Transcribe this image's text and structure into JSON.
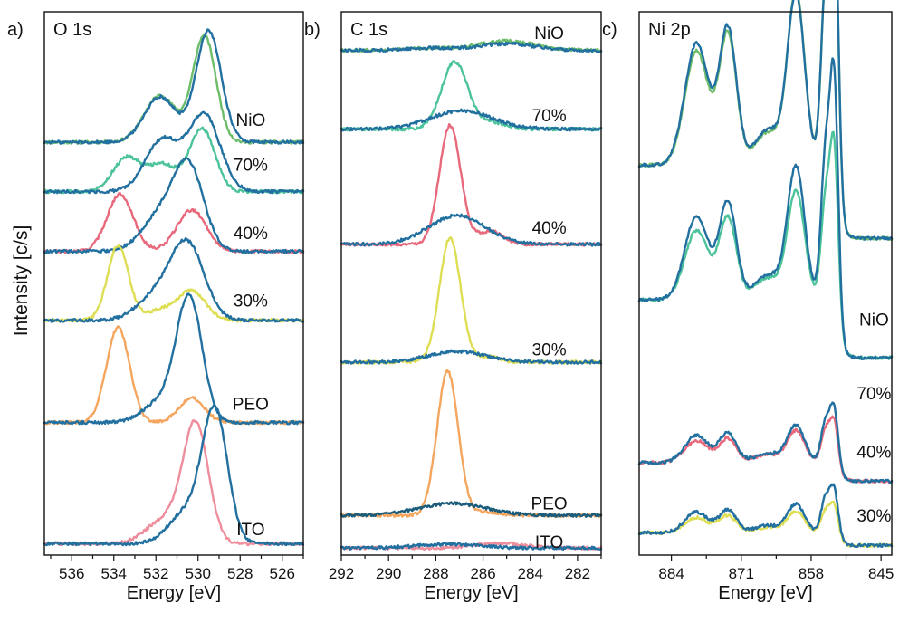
{
  "figure": {
    "ylabel": "Intensity [c/s]"
  },
  "colors": {
    "blue": "#2270a0",
    "NiO": "#6dbd6b",
    "70%": "#4cc39a",
    "40%": "#e8697b",
    "30%": "#dede55",
    "PEO": "#f4a65e",
    "ITO": "#ee8d9b"
  },
  "chart_data": [
    {
      "type": "line",
      "panel_label": "a)",
      "title": "O 1s",
      "xlabel": "Energy [eV]",
      "xlim": [
        537.3,
        525.0
      ],
      "x_reversed": true,
      "ticks": [
        536,
        534,
        532,
        530,
        528,
        526
      ],
      "ylim": [
        0,
        100
      ],
      "y_units": "arbitrary intensity (stacked)",
      "labels": [
        {
          "text": "NiO",
          "x": 527.5,
          "y": 80.2
        },
        {
          "text": "70%",
          "x": 527.5,
          "y": 71.9
        },
        {
          "text": "40%",
          "x": 527.5,
          "y": 59.3
        },
        {
          "text": "30%",
          "x": 527.5,
          "y": 46.9
        },
        {
          "text": "PEO",
          "x": 527.5,
          "y": 27.9
        },
        {
          "text": "ITO",
          "x": 527.5,
          "y": 4.8
        }
      ],
      "series": [
        {
          "color": "#6dbd6b",
          "baseline": 76.0,
          "peaks": [
            [
              529.7,
              19.5,
              0.55
            ],
            [
              531.8,
              8.6,
              0.75
            ]
          ]
        },
        {
          "color": "#2270a0",
          "baseline": 76.0,
          "peaks": [
            [
              529.5,
              20.5,
              0.6
            ],
            [
              531.8,
              8.4,
              0.75
            ]
          ]
        },
        {
          "color": "#4cc39a",
          "baseline": 66.9,
          "peaks": [
            [
              529.8,
              11.5,
              0.6
            ],
            [
              531.7,
              5.0,
              0.7
            ],
            [
              533.4,
              6.2,
              0.65
            ]
          ]
        },
        {
          "color": "#2270a0",
          "baseline": 66.9,
          "peaks": [
            [
              529.7,
              14.0,
              0.75
            ],
            [
              531.7,
              9.5,
              0.8
            ]
          ]
        },
        {
          "color": "#e8697b",
          "baseline": 55.9,
          "peaks": [
            [
              530.3,
              7.6,
              0.7
            ],
            [
              533.7,
              10.5,
              0.62
            ]
          ]
        },
        {
          "color": "#2270a0",
          "baseline": 55.9,
          "peaks": [
            [
              530.4,
              14.2,
              0.7
            ],
            [
              531.7,
              7.0,
              0.9
            ]
          ]
        },
        {
          "color": "#dede55",
          "baseline": 43.2,
          "peaks": [
            [
              530.3,
              5.3,
              0.65
            ],
            [
              531.8,
              1.8,
              0.7
            ],
            [
              533.8,
              13.7,
              0.5
            ]
          ]
        },
        {
          "color": "#2270a0",
          "baseline": 43.2,
          "peaks": [
            [
              530.5,
              13.7,
              0.8
            ],
            [
              532.0,
              4.3,
              0.9
            ]
          ]
        },
        {
          "color": "#f4a65e",
          "baseline": 24.4,
          "peaks": [
            [
              530.3,
              4.5,
              0.6
            ],
            [
              533.8,
              17.5,
              0.55
            ]
          ]
        },
        {
          "color": "#2270a0",
          "baseline": 24.4,
          "peaks": [
            [
              530.4,
              21.9,
              0.6
            ],
            [
              531.6,
              4.2,
              0.9
            ]
          ]
        },
        {
          "color": "#ee8d9b",
          "baseline": 2.1,
          "peaks": [
            [
              530.1,
              21.3,
              0.6
            ],
            [
              531.5,
              4.6,
              0.9
            ]
          ]
        },
        {
          "color": "#2270a0",
          "baseline": 2.1,
          "peaks": [
            [
              529.2,
              24.2,
              0.6
            ],
            [
              530.6,
              5.6,
              0.8
            ]
          ]
        }
      ]
    },
    {
      "type": "line",
      "panel_label": "b)",
      "title": "C 1s",
      "xlabel": "Energy [eV]",
      "xlim": [
        292.0,
        281.0
      ],
      "x_reversed": true,
      "ticks": [
        292,
        290,
        288,
        286,
        284,
        282
      ],
      "ylim": [
        0,
        100
      ],
      "y_units": "arbitrary intensity (stacked)",
      "labels": [
        {
          "text": "NiO",
          "x": 283.2,
          "y": 96.2
        },
        {
          "text": "70%",
          "x": 283.2,
          "y": 81.0
        },
        {
          "text": "40%",
          "x": 283.2,
          "y": 60.3
        },
        {
          "text": "30%",
          "x": 283.2,
          "y": 37.9
        },
        {
          "text": "PEO",
          "x": 283.2,
          "y": 9.6
        },
        {
          "text": "ITO",
          "x": 283.2,
          "y": 2.5
        }
      ],
      "series": [
        {
          "color": "#6dbd6b",
          "baseline": 92.9,
          "peaks": [
            [
              288.3,
              0.4,
              1.0
            ],
            [
              285.0,
              1.7,
              1.2
            ]
          ]
        },
        {
          "color": "#2270a0",
          "baseline": 92.9,
          "peaks": [
            [
              288.3,
              0.4,
              1.0
            ],
            [
              285.0,
              1.2,
              1.2
            ]
          ]
        },
        {
          "color": "#4cc39a",
          "baseline": 78.4,
          "peaks": [
            [
              287.2,
              12.4,
              0.55
            ],
            [
              285.6,
              1.2,
              0.6
            ]
          ]
        },
        {
          "color": "#2270a0",
          "baseline": 78.4,
          "peaks": [
            [
              286.9,
              3.4,
              1.3
            ]
          ]
        },
        {
          "color": "#e8697b",
          "baseline": 57.2,
          "peaks": [
            [
              287.4,
              21.9,
              0.45
            ],
            [
              285.7,
              2.4,
              0.55
            ]
          ]
        },
        {
          "color": "#2270a0",
          "baseline": 57.2,
          "peaks": [
            [
              287.1,
              5.3,
              1.2
            ]
          ]
        },
        {
          "color": "#dede55",
          "baseline": 35.5,
          "peaks": [
            [
              287.4,
              22.8,
              0.45
            ],
            [
              285.8,
              1.0,
              0.5
            ]
          ]
        },
        {
          "color": "#2270a0",
          "baseline": 35.5,
          "peaks": [
            [
              287.1,
              2.0,
              1.2
            ]
          ]
        },
        {
          "color": "#f4a65e",
          "baseline": 7.3,
          "peaks": [
            [
              287.5,
              26.5,
              0.45
            ],
            [
              285.8,
              0.6,
              0.5
            ]
          ]
        },
        {
          "color": "#1a5c7a",
          "baseline": 7.3,
          "peaks": [
            [
              287.3,
              2.2,
              1.4
            ]
          ]
        },
        {
          "color": "#ee8d9b",
          "baseline": 1.3,
          "peaks": [
            [
              285.3,
              0.9,
              1.0
            ]
          ]
        },
        {
          "color": "#2270a0",
          "baseline": 1.3,
          "peaks": [
            [
              287.5,
              0.7,
              1.3
            ]
          ]
        }
      ]
    },
    {
      "type": "line",
      "panel_label": "c)",
      "title": "Ni 2p",
      "xlabel": "Energy [eV]",
      "xlim": [
        890.0,
        843.0
      ],
      "x_reversed": true,
      "ticks": [
        884,
        871,
        858,
        845
      ],
      "ylim": [
        0,
        100
      ],
      "y_units": "arbitrary intensity (stacked)",
      "labels": [
        {
          "text": "NiO",
          "x": 846.3,
          "y": 43.4
        },
        {
          "text": "70%",
          "x": 846.3,
          "y": 29.8
        },
        {
          "text": "40%",
          "x": 846.3,
          "y": 19.1
        },
        {
          "text": "30%",
          "x": 846.3,
          "y": 7.3
        }
      ],
      "series": [
        {
          "color": "#6dbd6b",
          "baseline": 58.3,
          "edge": 852.8,
          "step": 13.5,
          "peaks": [
            [
              879.3,
              21.0,
              2.2
            ],
            [
              873.5,
              24.0,
              1.6
            ],
            [
              860.8,
              31.5,
              1.6
            ],
            [
              855.3,
              32.5,
              0.85
            ],
            [
              853.7,
              49.0,
              0.75
            ],
            [
              866.0,
              6.0,
              2.5
            ]
          ]
        },
        {
          "color": "#2270a0",
          "baseline": 58.3,
          "edge": 852.8,
          "step": 13.5,
          "peaks": [
            [
              879.3,
              22.5,
              2.2
            ],
            [
              873.5,
              25.0,
              1.6
            ],
            [
              860.8,
              31.0,
              1.6
            ],
            [
              855.3,
              32.5,
              0.85
            ],
            [
              853.7,
              51.0,
              0.75
            ],
            [
              866.0,
              6.5,
              2.5
            ]
          ]
        },
        {
          "color": "#4cc39a",
          "baseline": 36.3,
          "edge": 852.8,
          "step": 10.7,
          "peaks": [
            [
              879.3,
              12.8,
              2.2
            ],
            [
              873.5,
              15.0,
              1.6
            ],
            [
              860.8,
              19.7,
              1.6
            ],
            [
              855.3,
              18.3,
              0.85
            ],
            [
              853.7,
              28.5,
              0.75
            ],
            [
              866.0,
              4.0,
              2.5
            ]
          ]
        },
        {
          "color": "#2270a0",
          "baseline": 36.3,
          "edge": 852.8,
          "step": 10.7,
          "peaks": [
            [
              879.3,
              15.4,
              2.2
            ],
            [
              873.5,
              17.7,
              1.6
            ],
            [
              860.8,
              24.2,
              1.6
            ],
            [
              855.3,
              26.5,
              0.85
            ],
            [
              853.7,
              40.6,
              0.75
            ],
            [
              866.0,
              4.6,
              2.5
            ]
          ]
        },
        {
          "color": "#e8697b",
          "baseline": 13.6,
          "edge": 852.8,
          "step": 3.4,
          "peaks": [
            [
              879.3,
              4.1,
              2.2
            ],
            [
              873.5,
              4.4,
              1.6
            ],
            [
              860.8,
              5.8,
              1.6
            ],
            [
              855.3,
              5.9,
              0.85
            ],
            [
              853.7,
              7.7,
              0.75
            ],
            [
              866.0,
              1.5,
              2.5
            ]
          ]
        },
        {
          "color": "#2270a0",
          "baseline": 13.6,
          "edge": 852.8,
          "step": 3.4,
          "peaks": [
            [
              879.3,
              5.0,
              2.2
            ],
            [
              873.5,
              5.3,
              1.6
            ],
            [
              860.8,
              6.8,
              1.6
            ],
            [
              855.3,
              7.4,
              0.85
            ],
            [
              853.7,
              10.0,
              0.75
            ],
            [
              866.0,
              1.7,
              2.5
            ]
          ]
        },
        {
          "color": "#dede55",
          "baseline": 1.8,
          "edge": 852.8,
          "step": 2.3,
          "peaks": [
            [
              879.3,
              2.8,
              2.2
            ],
            [
              873.5,
              3.1,
              1.6
            ],
            [
              860.8,
              3.9,
              1.6
            ],
            [
              855.3,
              4.0,
              0.85
            ],
            [
              853.7,
              5.2,
              0.75
            ],
            [
              866.0,
              1.0,
              2.5
            ]
          ]
        },
        {
          "color": "#2270a0",
          "baseline": 1.8,
          "edge": 852.8,
          "step": 2.3,
          "peaks": [
            [
              879.3,
              3.8,
              2.2
            ],
            [
              873.5,
              4.1,
              1.6
            ],
            [
              860.8,
              5.2,
              1.6
            ],
            [
              855.3,
              6.4,
              0.85
            ],
            [
              853.7,
              7.8,
              0.75
            ],
            [
              866.0,
              1.3,
              2.5
            ]
          ]
        }
      ]
    }
  ]
}
